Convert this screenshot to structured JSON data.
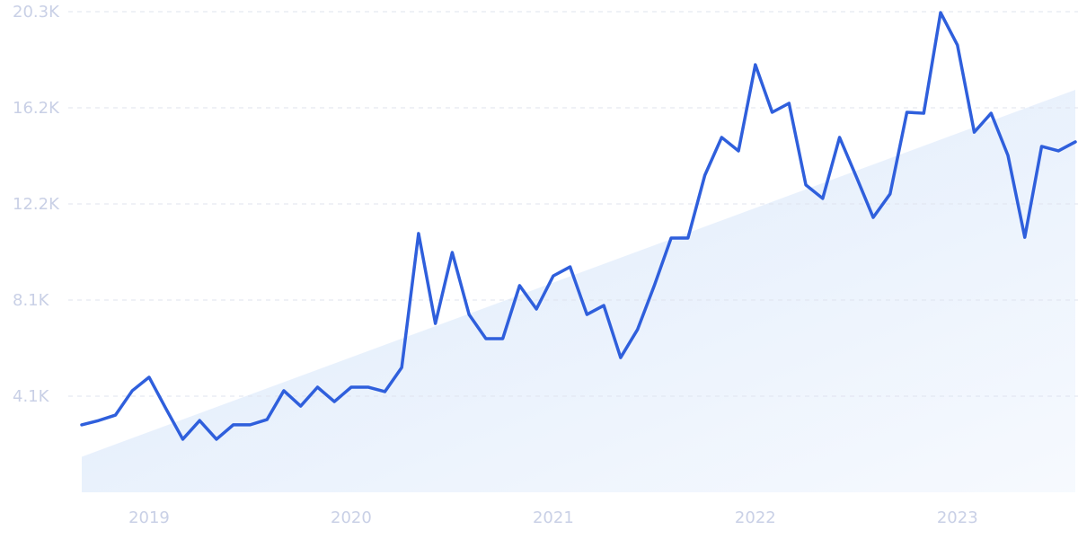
{
  "chart_data": {
    "type": "line",
    "categories": [
      null,
      null,
      null,
      null,
      "2019",
      null,
      null,
      null,
      null,
      null,
      null,
      null,
      null,
      null,
      null,
      null,
      "2020",
      null,
      null,
      null,
      null,
      null,
      null,
      null,
      null,
      null,
      null,
      null,
      "2021",
      null,
      null,
      null,
      null,
      null,
      null,
      null,
      null,
      null,
      null,
      null,
      "2022",
      null,
      null,
      null,
      null,
      null,
      null,
      null,
      null,
      null,
      null,
      null,
      "2023",
      null,
      null,
      null,
      null,
      null,
      null,
      null
    ],
    "series": [
      {
        "color": "#2f5fdc",
        "values": [
          2850,
          3030,
          3260,
          4290,
          4860,
          3530,
          2240,
          3030,
          2240,
          2850,
          2850,
          3070,
          4290,
          3640,
          4440,
          3830,
          4440,
          4440,
          4250,
          5270,
          10930,
          7130,
          10130,
          7510,
          6490,
          6490,
          8730,
          7740,
          9140,
          9520,
          7510,
          7890,
          5690,
          6870,
          8730,
          10740,
          10740,
          13390,
          14990,
          14420,
          18060,
          16050,
          16430,
          12980,
          12410,
          14990,
          13320,
          11610,
          12600,
          16050,
          16010,
          20260,
          18890,
          15210,
          16010,
          14230,
          10770,
          14610,
          14420,
          14800
        ]
      }
    ],
    "trend": {
      "color": "#dce9fb",
      "values": [
        1500,
        17000
      ]
    },
    "ylim": [
      0,
      20300
    ],
    "yticks": [
      {
        "value": 4060,
        "label": "4.1K"
      },
      {
        "value": 8120,
        "label": "8.1K"
      },
      {
        "value": 12180,
        "label": "12.2K"
      },
      {
        "value": 16240,
        "label": "16.2K"
      },
      {
        "value": 20300,
        "label": "20.3K"
      }
    ],
    "grid": true
  }
}
